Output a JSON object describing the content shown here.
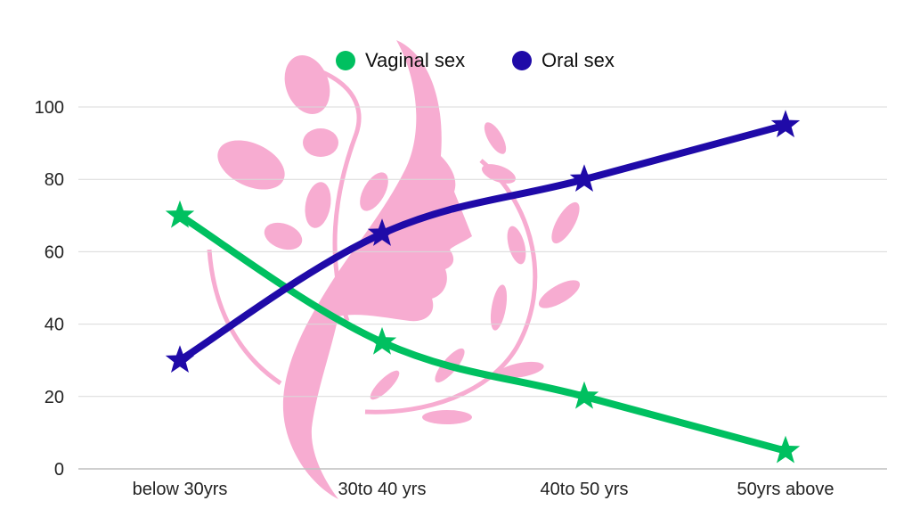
{
  "chart_data": {
    "type": "line",
    "categories": [
      "below 30yrs",
      "30to 40 yrs",
      "40to 50 yrs",
      "50yrs above"
    ],
    "series": [
      {
        "name": "Vaginal sex",
        "values": [
          70,
          35,
          20,
          5
        ],
        "color": "#00c060"
      },
      {
        "name": "Oral sex",
        "values": [
          30,
          65,
          80,
          95
        ],
        "color": "#1f0aa8"
      }
    ],
    "title": "",
    "xlabel": "",
    "ylabel": "",
    "ylim": [
      0,
      100
    ],
    "yticks": [
      "0",
      "20",
      "40",
      "60",
      "80",
      "100"
    ],
    "grid": true,
    "legend_position": "top-center",
    "marker": "star",
    "background_image": "pink woman profile with leaves silhouette",
    "background_color": "#f7a8cf"
  }
}
